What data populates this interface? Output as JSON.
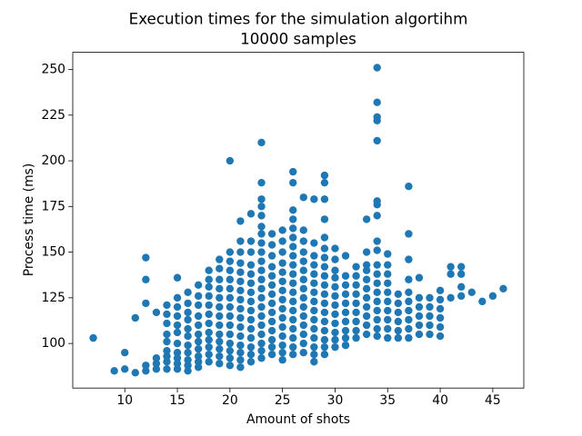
{
  "chart_data": {
    "type": "scatter",
    "title": "Execution times for the simulation algortihm",
    "subtitle": "10000 samples",
    "xlabel": "Amount of shots",
    "ylabel": "Process time (ms)",
    "xlim": [
      5.05,
      47.95
    ],
    "ylim": [
      75.6,
      259.4
    ],
    "xticks": [
      10,
      15,
      20,
      25,
      30,
      35,
      40,
      45
    ],
    "yticks": [
      100,
      125,
      150,
      175,
      200,
      225,
      250
    ],
    "grid": false,
    "series": [
      {
        "color": "#1f77b4",
        "x": [
          7,
          9,
          10,
          10,
          11,
          11,
          12,
          12,
          12,
          12,
          12,
          13,
          13,
          13,
          13,
          14,
          14,
          14,
          14,
          14,
          14,
          14,
          14,
          14,
          15,
          15,
          15,
          15,
          15,
          15,
          15,
          15,
          15,
          15,
          15,
          16,
          16,
          16,
          16,
          16,
          16,
          16,
          16,
          16,
          16,
          16,
          17,
          17,
          17,
          17,
          17,
          17,
          17,
          17,
          17,
          17,
          17,
          18,
          18,
          18,
          18,
          18,
          18,
          18,
          18,
          18,
          18,
          18,
          18,
          19,
          19,
          19,
          19,
          19,
          19,
          19,
          19,
          19,
          19,
          19,
          19,
          19,
          20,
          20,
          20,
          20,
          20,
          20,
          20,
          20,
          20,
          20,
          20,
          20,
          20,
          20,
          20,
          21,
          21,
          21,
          21,
          21,
          21,
          21,
          21,
          21,
          21,
          21,
          21,
          21,
          21,
          21,
          21,
          22,
          22,
          22,
          22,
          22,
          22,
          22,
          22,
          22,
          22,
          22,
          22,
          22,
          22,
          22,
          23,
          23,
          23,
          23,
          23,
          23,
          23,
          23,
          23,
          23,
          23,
          23,
          23,
          23,
          23,
          23,
          23,
          23,
          23,
          23,
          23,
          24,
          24,
          24,
          24,
          24,
          24,
          24,
          24,
          24,
          24,
          24,
          24,
          24,
          24,
          25,
          25,
          25,
          25,
          25,
          25,
          25,
          25,
          25,
          25,
          25,
          25,
          25,
          25,
          25,
          26,
          26,
          26,
          26,
          26,
          26,
          26,
          26,
          26,
          26,
          26,
          26,
          26,
          26,
          26,
          26,
          26,
          26,
          26,
          27,
          27,
          27,
          27,
          27,
          27,
          27,
          27,
          27,
          27,
          27,
          27,
          27,
          27,
          27,
          28,
          28,
          28,
          28,
          28,
          28,
          28,
          28,
          28,
          28,
          28,
          28,
          28,
          28,
          28,
          29,
          29,
          29,
          29,
          29,
          29,
          29,
          29,
          29,
          29,
          29,
          29,
          29,
          29,
          29,
          29,
          29,
          29,
          30,
          30,
          30,
          30,
          30,
          30,
          30,
          30,
          30,
          30,
          30,
          30,
          31,
          31,
          31,
          31,
          31,
          31,
          31,
          31,
          31,
          31,
          32,
          32,
          32,
          32,
          32,
          32,
          32,
          32,
          32,
          33,
          33,
          33,
          33,
          33,
          33,
          33,
          33,
          33,
          33,
          33,
          34,
          34,
          34,
          34,
          34,
          34,
          34,
          34,
          34,
          34,
          34,
          34,
          34,
          34,
          34,
          34,
          34,
          34,
          34,
          35,
          35,
          35,
          35,
          35,
          35,
          35,
          35,
          35,
          35,
          36,
          36,
          36,
          36,
          36,
          36,
          37,
          37,
          37,
          37,
          37,
          37,
          37,
          37,
          37,
          37,
          38,
          38,
          38,
          38,
          38,
          38,
          39,
          39,
          39,
          39,
          39,
          40,
          40,
          40,
          40,
          40,
          40,
          41,
          41,
          41,
          42,
          42,
          42,
          42,
          43,
          44,
          45,
          46
        ],
        "values": [
          103,
          85,
          86,
          95,
          84,
          114,
          85,
          88,
          122,
          135,
          147,
          86,
          89,
          92,
          117,
          86,
          90,
          93,
          96,
          101,
          105,
          111,
          116,
          121,
          86,
          89,
          92,
          95,
          100,
          106,
          110,
          115,
          120,
          125,
          136,
          85,
          88,
          91,
          95,
          99,
          104,
          108,
          113,
          117,
          122,
          128,
          87,
          90,
          93,
          97,
          101,
          105,
          110,
          115,
          121,
          126,
          132,
          90,
          94,
          98,
          102,
          106,
          111,
          116,
          121,
          126,
          131,
          135,
          140,
          89,
          93,
          97,
          101,
          105,
          110,
          115,
          120,
          125,
          130,
          135,
          141,
          146,
          88,
          92,
          96,
          100,
          105,
          110,
          115,
          120,
          125,
          130,
          135,
          140,
          145,
          150,
          200,
          87,
          91,
          95,
          99,
          104,
          109,
          114,
          119,
          124,
          129,
          134,
          139,
          144,
          150,
          156,
          167,
          90,
          94,
          98,
          103,
          108,
          113,
          118,
          123,
          128,
          133,
          138,
          143,
          150,
          156,
          171,
          92,
          96,
          100,
          105,
          110,
          115,
          120,
          125,
          130,
          135,
          140,
          145,
          150,
          155,
          160,
          164,
          170,
          175,
          179,
          188,
          210,
          94,
          98,
          102,
          107,
          112,
          117,
          122,
          127,
          132,
          137,
          142,
          148,
          154,
          160,
          91,
          95,
          99,
          104,
          109,
          114,
          119,
          124,
          129,
          134,
          139,
          144,
          150,
          156,
          162,
          94,
          98,
          103,
          108,
          113,
          118,
          123,
          128,
          133,
          138,
          143,
          148,
          153,
          158,
          163,
          168,
          173,
          188,
          194,
          95,
          100,
          105,
          110,
          115,
          120,
          125,
          130,
          135,
          140,
          145,
          150,
          156,
          162,
          180,
          90,
          94,
          98,
          103,
          108,
          113,
          118,
          123,
          128,
          133,
          138,
          143,
          148,
          155,
          179,
          94,
          98,
          102,
          107,
          112,
          117,
          122,
          127,
          132,
          137,
          142,
          147,
          152,
          158,
          168,
          179,
          188,
          192,
          98,
          102,
          106,
          111,
          116,
          121,
          126,
          131,
          136,
          140,
          146,
          152,
          99,
          103,
          107,
          112,
          117,
          122,
          127,
          132,
          137,
          148,
          103,
          107,
          112,
          117,
          122,
          127,
          132,
          137,
          142,
          105,
          110,
          115,
          120,
          125,
          130,
          135,
          140,
          143,
          150,
          168,
          104,
          108,
          113,
          118,
          123,
          128,
          133,
          138,
          143,
          151,
          156,
          170,
          176,
          178,
          211,
          222,
          224,
          232,
          251,
          103,
          108,
          113,
          118,
          123,
          128,
          133,
          138,
          143,
          149,
          103,
          107,
          112,
          117,
          122,
          127,
          103,
          108,
          113,
          118,
          123,
          128,
          135,
          146,
          160,
          186,
          105,
          110,
          115,
          120,
          125,
          136,
          105,
          110,
          115,
          120,
          125,
          104,
          109,
          114,
          119,
          124,
          129,
          125,
          138,
          142,
          126,
          131,
          138,
          142,
          128,
          123,
          126,
          130
        ]
      }
    ]
  }
}
